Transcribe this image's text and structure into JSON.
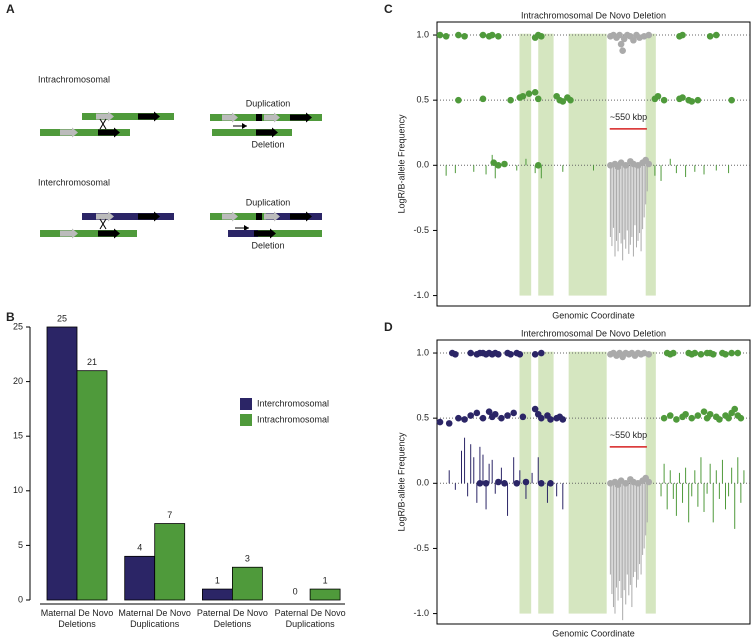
{
  "diagram": {
    "label": "A",
    "intra": {
      "title": "Intrachromosomal",
      "duplication": "Duplication",
      "deletion": "Deletion"
    },
    "inter": {
      "title": "Interchromosomal",
      "duplication": "Duplication",
      "deletion": "Deletion"
    }
  },
  "chart_data": [
    {
      "type": "bar",
      "label": "B",
      "categories": [
        "Maternal De Novo Deletions",
        "Maternal De Novo Duplications",
        "Paternal De Novo Deletions",
        "Paternal De Novo Duplications"
      ],
      "series": [
        {
          "name": "Interchromosomal",
          "color": "#2b2566",
          "values": [
            25,
            4,
            1,
            0
          ]
        },
        {
          "name": "Intrachromosomal",
          "color": "#4f9a3b",
          "values": [
            21,
            7,
            3,
            1
          ]
        }
      ],
      "ylim": [
        0,
        25
      ],
      "yticks": [
        0,
        5,
        10,
        15,
        20,
        25
      ]
    },
    {
      "type": "scatter",
      "label": "C",
      "title": "Intrachromosomal De Novo Deletion",
      "xlabel": "Genomic Coordinate",
      "ylabel": "LogR/B-allele Frequency",
      "annotation": "~550 kbp",
      "xlim": [
        0,
        100
      ],
      "ylim": [
        -1.08,
        1.1
      ],
      "yticks": [
        {
          "value": 1,
          "label": "1.0"
        },
        {
          "value": 0.5,
          "label": "0.5"
        },
        {
          "value": 0,
          "label": "0.0"
        },
        {
          "value": -0.5,
          "label": "-0.5"
        },
        {
          "value": -1,
          "label": "-1.0"
        }
      ],
      "reference_lines": [
        1,
        0.5,
        0
      ],
      "series": [
        {
          "style": "stems",
          "color": "#4f9a3b",
          "x": [
            2,
            5,
            11,
            15,
            17,
            18,
            25,
            28,
            31,
            33,
            40,
            50,
            70,
            72,
            75,
            77,
            80,
            83,
            86,
            90,
            94
          ],
          "values": [
            -0.08,
            -0.06,
            -0.05,
            -0.07,
            0.08,
            -0.1,
            -0.04,
            0.05,
            -0.06,
            -0.1,
            -0.05,
            -0.04,
            -0.08,
            -0.12,
            0.05,
            -0.06,
            -0.09,
            -0.05,
            -0.07,
            -0.04,
            -0.06
          ]
        },
        {
          "style": "stems",
          "color": "#aaaaaa",
          "x": [
            55.5,
            56,
            56.5,
            57,
            57.5,
            58,
            58.5,
            59,
            59.5,
            60,
            60.5,
            61,
            61.5,
            62,
            62.5,
            63,
            63.5,
            64,
            64.5,
            65,
            65.5,
            66,
            66.5,
            67,
            67.5
          ],
          "values": [
            -0.55,
            -0.62,
            -0.48,
            -0.7,
            -0.58,
            -0.66,
            -0.52,
            -0.6,
            -0.73,
            -0.57,
            -0.64,
            -0.5,
            -0.68,
            -0.61,
            -0.55,
            -0.7,
            -0.46,
            -0.63,
            -0.58,
            -0.52,
            -0.66,
            -0.49,
            -0.4,
            -0.3,
            -0.2
          ]
        },
        {
          "style": "points",
          "color": "#4f9a3b",
          "x": [
            0,
            2,
            6,
            8,
            14,
            16,
            17,
            19,
            31,
            32,
            33,
            78,
            79,
            88,
            90
          ],
          "values": [
            1,
            0.99,
            1,
            0.99,
            1,
            0.99,
            1,
            0.99,
            0.98,
            1,
            0.99,
            0.99,
            1,
            0.99,
            1
          ]
        },
        {
          "style": "points",
          "color": "#4f9a3b",
          "x": [
            6,
            14,
            23,
            26,
            27,
            29,
            31,
            32,
            38,
            39,
            40,
            41.5,
            42.5,
            70,
            71,
            73,
            78,
            79,
            81,
            82,
            84,
            95
          ],
          "values": [
            0.5,
            0.51,
            0.5,
            0.52,
            0.53,
            0.55,
            0.56,
            0.51,
            0.53,
            0.5,
            0.49,
            0.52,
            0.5,
            0.51,
            0.53,
            0.5,
            0.51,
            0.52,
            0.5,
            0.49,
            0.5,
            0.5
          ]
        },
        {
          "style": "points",
          "color": "#4f9a3b",
          "x": [
            17.5,
            19,
            21,
            32
          ],
          "values": [
            0.02,
            0,
            0.01,
            0
          ]
        },
        {
          "style": "points",
          "color": "#aaaaaa",
          "x": [
            55.5,
            56.5,
            57.5,
            58.5,
            59,
            59.5,
            60,
            61,
            62,
            63,
            64,
            65,
            66.5,
            68
          ],
          "values": [
            0.99,
            1,
            0.98,
            1,
            0.93,
            0.88,
            0.97,
            1,
            0.99,
            0.96,
            1,
            0.98,
            0.99,
            1
          ]
        },
        {
          "style": "points",
          "color": "#aaaaaa",
          "x": [
            55.5,
            57,
            58,
            59,
            60.5,
            62,
            63,
            64.5,
            66,
            67,
            68
          ],
          "values": [
            0,
            0.01,
            -0.01,
            0.02,
            0,
            0.03,
            0.01,
            0,
            0.02,
            0.04,
            0.01
          ]
        }
      ]
    },
    {
      "type": "scatter",
      "label": "D",
      "title": "Interchromosomal De Novo Deletion",
      "xlabel": "Genomic Coordinate",
      "ylabel": "LogR/B-allele Frequency",
      "annotation": "~550 kbp",
      "xlim": [
        0,
        100
      ],
      "ylim": [
        -1.08,
        1.1
      ],
      "yticks": [
        {
          "value": 1,
          "label": "1.0"
        },
        {
          "value": 0.5,
          "label": "0.5"
        },
        {
          "value": 0,
          "label": "0.0"
        },
        {
          "value": -0.5,
          "label": "-0.5"
        },
        {
          "value": -1,
          "label": "-1.0"
        }
      ],
      "reference_lines": [
        1,
        0.5,
        0
      ],
      "series": [
        {
          "style": "stems",
          "color": "#2b2566",
          "x": [
            3,
            5,
            7,
            8,
            9,
            10,
            11,
            12,
            13,
            14,
            15,
            16,
            17,
            18,
            20,
            22,
            24,
            26,
            28,
            30,
            32,
            35,
            38,
            40
          ],
          "values": [
            0.1,
            -0.05,
            0.25,
            0.35,
            -0.1,
            0.3,
            0.2,
            -0.15,
            0.28,
            0.22,
            -0.2,
            0.15,
            0.18,
            -0.08,
            0.12,
            -0.25,
            0.2,
            0.1,
            -0.12,
            0.08,
            0.2,
            -0.15,
            -0.1,
            -0.2
          ]
        },
        {
          "style": "stems",
          "color": "#4f9a3b",
          "x": [
            72,
            73,
            74,
            75,
            76,
            77,
            78,
            79,
            80,
            81,
            82,
            83,
            84,
            85,
            86,
            87,
            88,
            89,
            90,
            91,
            92,
            93,
            94,
            95,
            96,
            97,
            98,
            99
          ],
          "values": [
            -0.1,
            0.15,
            -0.2,
            0.1,
            -0.12,
            -0.25,
            0.08,
            -0.15,
            0.12,
            -0.3,
            -0.1,
            0.1,
            -0.18,
            0.2,
            -0.22,
            -0.08,
            0.15,
            -0.3,
            0.1,
            -0.12,
            0.18,
            -0.2,
            -0.1,
            0.12,
            -0.35,
            0.2,
            -0.15,
            0.1
          ]
        },
        {
          "style": "stems",
          "color": "#aaaaaa",
          "x": [
            55.5,
            56,
            56.5,
            57,
            57.5,
            58,
            58.5,
            59,
            59.5,
            60,
            60.5,
            61,
            61.5,
            62,
            62.5,
            63,
            63.5,
            64,
            64.5,
            65,
            65.5,
            66,
            66.5,
            67,
            67.5
          ],
          "values": [
            -0.7,
            -0.85,
            -0.95,
            -1,
            -0.8,
            -0.9,
            -0.75,
            -0.88,
            -1.05,
            -0.82,
            -0.93,
            -0.7,
            -0.86,
            -0.78,
            -0.95,
            -0.72,
            -0.68,
            -0.8,
            -0.74,
            -0.62,
            -0.7,
            -0.55,
            -0.5,
            -0.4,
            -0.3
          ]
        },
        {
          "style": "points",
          "color": "#2b2566",
          "x": [
            4,
            5,
            10,
            12,
            13,
            14,
            15,
            16,
            17,
            18,
            19,
            22,
            23,
            25,
            26,
            31,
            33
          ],
          "values": [
            1,
            0.99,
            1,
            0.99,
            1,
            1,
            0.99,
            1,
            0.99,
            1,
            0.99,
            1,
            0.99,
            1,
            0.99,
            0.99,
            1
          ]
        },
        {
          "style": "points",
          "color": "#2b2566",
          "x": [
            0,
            3,
            6,
            8,
            10,
            12,
            14,
            16,
            17,
            18,
            20,
            22,
            24,
            27,
            31,
            32,
            33,
            35,
            36,
            38,
            39,
            40
          ],
          "values": [
            0.47,
            0.46,
            0.5,
            0.49,
            0.52,
            0.54,
            0.5,
            0.55,
            0.51,
            0.53,
            0.5,
            0.52,
            0.54,
            0.51,
            0.57,
            0.53,
            0.5,
            0.52,
            0.49,
            0.5,
            0.51,
            0.49
          ]
        },
        {
          "style": "points",
          "color": "#2b2566",
          "x": [
            13,
            15,
            19,
            21,
            25,
            28,
            33,
            36
          ],
          "values": [
            0,
            0,
            0.01,
            0,
            0,
            0.01,
            0,
            0
          ]
        },
        {
          "style": "points",
          "color": "#4f9a3b",
          "x": [
            74,
            75,
            76,
            81,
            82,
            83,
            85,
            87,
            88,
            89,
            92,
            93,
            95,
            97
          ],
          "values": [
            1,
            0.99,
            1,
            1,
            0.99,
            1,
            0.99,
            1,
            1,
            0.99,
            1,
            0.99,
            1,
            1
          ]
        },
        {
          "style": "points",
          "color": "#4f9a3b",
          "x": [
            73,
            75,
            77,
            79,
            80,
            82,
            84,
            86,
            87,
            88,
            90,
            91,
            93,
            94,
            95,
            96,
            97,
            98
          ],
          "values": [
            0.5,
            0.52,
            0.49,
            0.51,
            0.53,
            0.5,
            0.52,
            0.55,
            0.5,
            0.53,
            0.51,
            0.49,
            0.52,
            0.5,
            0.54,
            0.57,
            0.52,
            0.5
          ]
        },
        {
          "style": "points",
          "color": "#aaaaaa",
          "x": [
            55.5,
            56.5,
            57.5,
            58.5,
            59.5,
            60.5,
            61.5,
            62.5,
            63.5,
            64.5,
            65.5,
            66.5,
            68
          ],
          "values": [
            0.99,
            1,
            0.98,
            1,
            0.97,
            1,
            0.99,
            1,
            0.98,
            1,
            0.99,
            1,
            0.99
          ]
        },
        {
          "style": "points",
          "color": "#aaaaaa",
          "x": [
            55.5,
            57,
            58,
            59,
            60.5,
            62,
            63,
            64.5,
            66,
            67,
            68
          ],
          "values": [
            0,
            0.01,
            -0.01,
            0.02,
            0,
            0.03,
            0.01,
            0,
            0.02,
            0.04,
            0.01
          ]
        }
      ]
    }
  ]
}
